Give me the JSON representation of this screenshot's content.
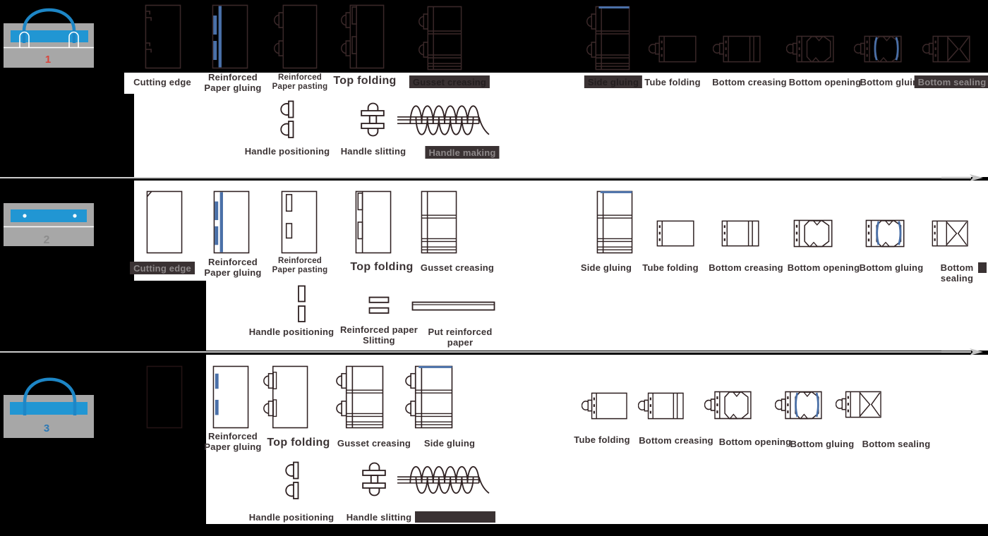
{
  "colors": {
    "accent_blue": "#4a70a8",
    "bag_blue": "#2196d3",
    "bag_gray": "#a7a7a7",
    "highlight_box": "#3a3233",
    "badge_red": "#d9453c",
    "badge_gray": "#8c8c8c",
    "badge_blue": "#2c78b5",
    "arrow_gray": "#c4c4c4"
  },
  "rows": [
    {
      "badge": "1",
      "steps": [
        {
          "label": "Cutting edge",
          "icon": "cutting-edge",
          "highlighted": false
        },
        {
          "label": "Reinforced\nPaper gluing",
          "icon": "reinforced-paper-gluing",
          "highlighted": false
        },
        {
          "label": "Reinforced\nPaper pasting",
          "icon": "reinforced-paper-pasting",
          "highlighted": false
        },
        {
          "label": "Top folding",
          "icon": "top-folding",
          "highlighted": false
        },
        {
          "label": "Gusset creasing",
          "icon": "gusset-creasing",
          "highlighted": true
        },
        {
          "label": "Side gluing",
          "icon": "side-gluing",
          "highlighted": true
        },
        {
          "label": "Tube folding",
          "icon": "tube-folding",
          "highlighted": false
        },
        {
          "label": "Bottom creasing",
          "icon": "bottom-creasing",
          "highlighted": false
        },
        {
          "label": "Bottom opening",
          "icon": "bottom-opening",
          "highlighted": false
        },
        {
          "label": "Bottom gluing",
          "icon": "bottom-gluing",
          "highlighted": false
        },
        {
          "label": "Bottom sealing",
          "icon": "bottom-sealing",
          "highlighted": true
        }
      ],
      "substeps": [
        {
          "label": "Handle positioning",
          "icon": "handle-positioning",
          "highlighted": false
        },
        {
          "label": "Handle slitting",
          "icon": "handle-slitting",
          "highlighted": false
        },
        {
          "label": "Handle making",
          "icon": "handle-making",
          "highlighted": true
        }
      ]
    },
    {
      "badge": "2",
      "steps": [
        {
          "label": "Cutting edge",
          "icon": "cutting-edge",
          "highlighted": true
        },
        {
          "label": "Reinforced\nPaper gluing",
          "icon": "reinforced-paper-gluing",
          "highlighted": false
        },
        {
          "label": "Reinforced\nPaper pasting",
          "icon": "reinforced-paper-pasting",
          "highlighted": false
        },
        {
          "label": "Top folding",
          "icon": "top-folding",
          "highlighted": false
        },
        {
          "label": "Gusset creasing",
          "icon": "gusset-creasing",
          "highlighted": false
        },
        {
          "label": "Side gluing",
          "icon": "side-gluing",
          "highlighted": false
        },
        {
          "label": "Tube folding",
          "icon": "tube-folding",
          "highlighted": false
        },
        {
          "label": "Bottom creasing",
          "icon": "bottom-creasing",
          "highlighted": false
        },
        {
          "label": "Bottom opening",
          "icon": "bottom-opening",
          "highlighted": false
        },
        {
          "label": "Bottom gluing",
          "icon": "bottom-gluing",
          "highlighted": false
        },
        {
          "label": "Bottom sealing",
          "icon": "bottom-sealing",
          "highlighted": false
        }
      ],
      "substeps": [
        {
          "label": "Handle positioning",
          "icon": "handle-positioning",
          "highlighted": false
        },
        {
          "label": "Reinforced paper\nSlitting",
          "icon": "reinforced-paper-slitting",
          "highlighted": false
        },
        {
          "label": "Put reinforced\npaper",
          "icon": "put-reinforced-paper",
          "highlighted": false
        }
      ]
    },
    {
      "badge": "3",
      "steps": [
        {
          "label": "",
          "icon": "blank-sheet",
          "highlighted": false
        },
        {
          "label": "Reinforced\nPaper gluing",
          "icon": "reinforced-paper-gluing",
          "highlighted": false
        },
        {
          "label": "Top folding",
          "icon": "top-folding",
          "highlighted": false
        },
        {
          "label": "Gusset creasing",
          "icon": "gusset-creasing",
          "highlighted": false
        },
        {
          "label": "Side gluing",
          "icon": "side-gluing",
          "highlighted": false
        },
        {
          "label": "Tube folding",
          "icon": "tube-folding",
          "highlighted": false
        },
        {
          "label": "Bottom creasing",
          "icon": "bottom-creasing",
          "highlighted": false
        },
        {
          "label": "Bottom opening",
          "icon": "bottom-opening",
          "highlighted": false
        },
        {
          "label": "Bottom gluing",
          "icon": "bottom-gluing",
          "highlighted": false
        },
        {
          "label": "Bottom sealing",
          "icon": "bottom-sealing",
          "highlighted": false
        }
      ],
      "substeps": [
        {
          "label": "Handle positioning",
          "icon": "handle-positioning",
          "highlighted": false
        },
        {
          "label": "Handle slitting",
          "icon": "handle-slitting",
          "highlighted": false
        },
        {
          "label": "",
          "icon": "handle-making",
          "highlighted": true
        }
      ]
    }
  ]
}
